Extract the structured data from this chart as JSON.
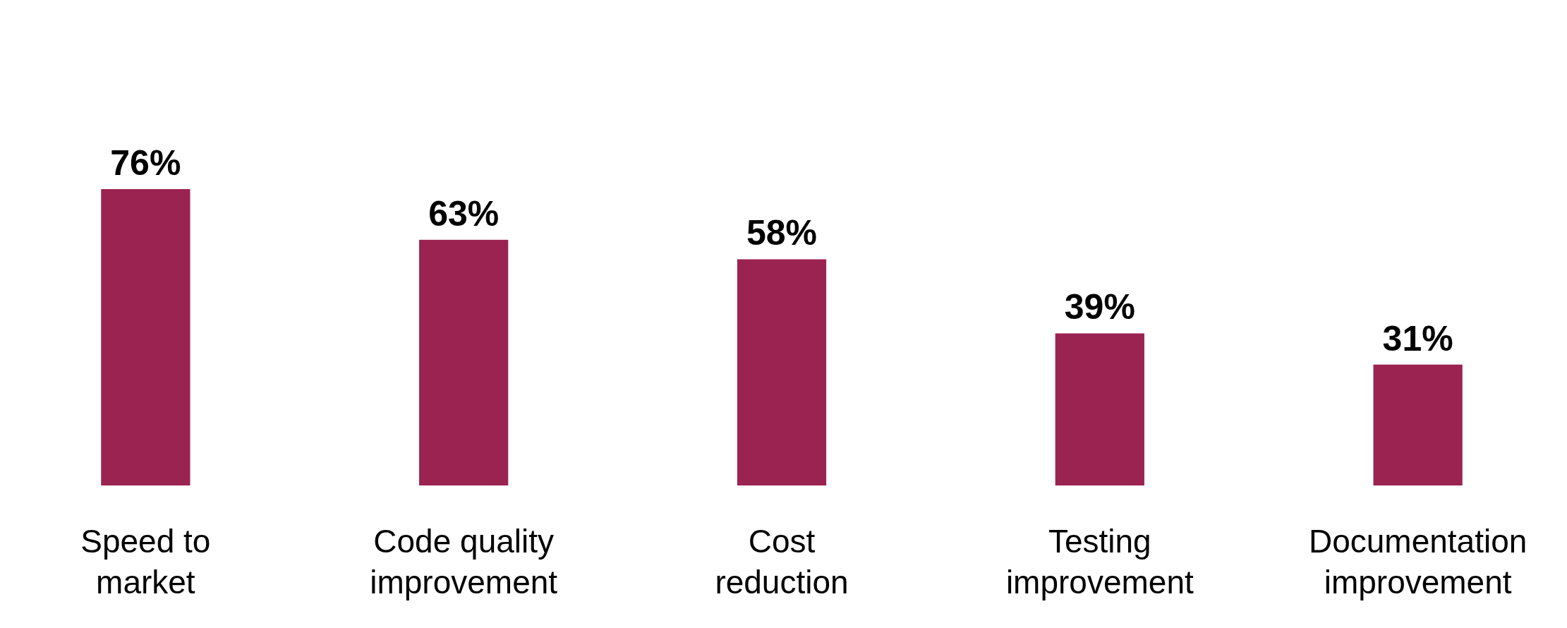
{
  "chart_data": {
    "type": "bar",
    "categories": [
      "Speed to market",
      "Code quality improvement",
      "Cost reduction",
      "Testing improvement",
      "Documentation improvement"
    ],
    "values": [
      76,
      63,
      58,
      39,
      31
    ],
    "color": "#9b2352",
    "value_labels": [
      "76%",
      "63%",
      "58%",
      "39%",
      "31%"
    ],
    "tick_labels": "x"
  }
}
